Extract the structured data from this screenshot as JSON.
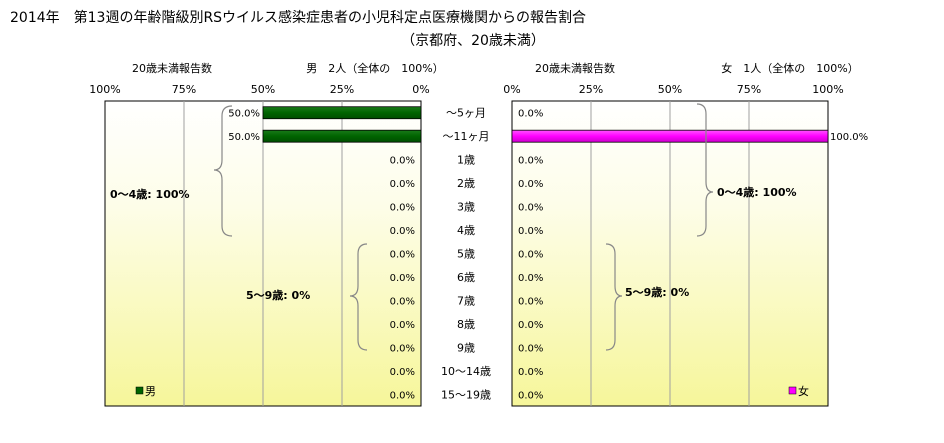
{
  "chart_data": {
    "type": "bar",
    "title_line1": "2014年　第13週の年齢階級別RSウイルス感染症患者の小児科定点医療機関からの報告割合",
    "title_line2": "（京都府、20歳未満）",
    "categories": [
      "～5ヶ月",
      "～11ヶ月",
      "1歳",
      "2歳",
      "3歳",
      "4歳",
      "5歳",
      "6歳",
      "7歳",
      "8歳",
      "9歳",
      "10～14歳",
      "15～19歳"
    ],
    "xlim": [
      0,
      100
    ],
    "left_ticks": [
      "100%",
      "75%",
      "50%",
      "25%",
      "0%"
    ],
    "right_ticks": [
      "0%",
      "25%",
      "50%",
      "75%",
      "100%"
    ],
    "series": [
      {
        "name": "男",
        "panel_header": "男　2人（全体の　100%）",
        "axis_caption": "20歳未満報告数",
        "color": "#006400",
        "values": [
          50.0,
          50.0,
          0,
          0,
          0,
          0,
          0,
          0,
          0,
          0,
          0,
          0,
          0
        ],
        "value_labels": [
          "50.0%",
          "50.0%",
          "0.0%",
          "0.0%",
          "0.0%",
          "0.0%",
          "0.0%",
          "0.0%",
          "0.0%",
          "0.0%",
          "0.0%",
          "0.0%",
          "0.0%"
        ],
        "group_labels": [
          "0～4歳: 100%",
          "5～9歳: 0%"
        ],
        "legend": "男"
      },
      {
        "name": "女",
        "panel_header": "女　1人（全体の　100%）",
        "axis_caption": "20歳未満報告数",
        "color": "#ff00ff",
        "values": [
          0,
          100.0,
          0,
          0,
          0,
          0,
          0,
          0,
          0,
          0,
          0,
          0,
          0
        ],
        "value_labels": [
          "0.0%",
          "100.0%",
          "0.0%",
          "0.0%",
          "0.0%",
          "0.0%",
          "0.0%",
          "0.0%",
          "0.0%",
          "0.0%",
          "0.0%",
          "0.0%",
          "0.0%"
        ],
        "group_labels": [
          "0～4歳: 100%",
          "5～9歳: 0%"
        ],
        "legend": "女"
      }
    ]
  }
}
